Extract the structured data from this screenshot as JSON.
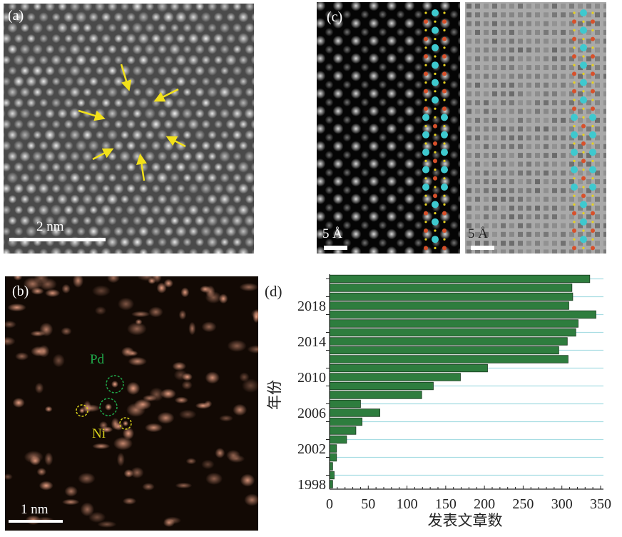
{
  "panels": {
    "a": {
      "label": "(a)",
      "scale_bar": "2 nm"
    },
    "b": {
      "label": "(b)",
      "scale_bar": "1 nm",
      "pd_label": "Pd",
      "ni_label": "Ni"
    },
    "c": {
      "label": "(c)",
      "scale_bar_left": "5 Å",
      "scale_bar_right": "5 Å"
    },
    "d": {
      "label": "(d)"
    }
  },
  "colors": {
    "bar": "#2e7d3e",
    "grid": "#a8dde3",
    "arrow": "#f2e11a",
    "pd_circle": "#1fa84a",
    "ni_circle": "#d9d21a",
    "atom_cyan": "#3ec9cf",
    "atom_red": "#d8502a",
    "atom_yellow": "#e6d21e"
  },
  "chart_data": {
    "type": "bar",
    "orientation": "horizontal",
    "categories": [
      1998,
      1999,
      2000,
      2001,
      2002,
      2003,
      2004,
      2005,
      2006,
      2007,
      2008,
      2009,
      2010,
      2011,
      2012,
      2013,
      2014,
      2015,
      2016,
      2017,
      2018,
      2019,
      2020,
      2021
    ],
    "values": [
      4,
      6,
      4,
      9,
      9,
      22,
      34,
      42,
      65,
      40,
      119,
      134,
      169,
      204,
      308,
      296,
      307,
      318,
      321,
      344,
      309,
      314,
      313,
      336
    ],
    "xlabel": "发表文章数",
    "ylabel": "年份",
    "xlim": [
      0,
      350
    ],
    "xticks": [
      "0",
      "50",
      "100",
      "150",
      "200",
      "250",
      "300",
      "350"
    ],
    "yticks": [
      "1998",
      "2002",
      "2006",
      "2010",
      "2014",
      "2018"
    ],
    "grid": "horizontal"
  }
}
